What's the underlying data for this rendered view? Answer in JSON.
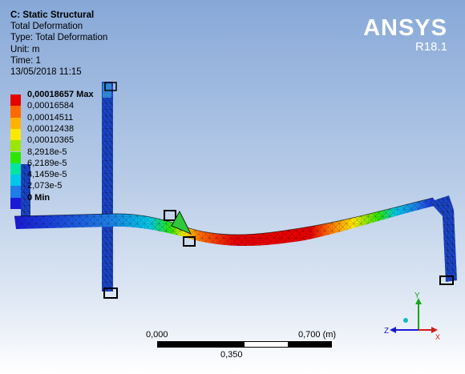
{
  "info": {
    "title": "C: Static Structural",
    "line1": "Total Deformation",
    "line2": "Type: Total Deformation",
    "line3": "Unit: m",
    "line4": "Time: 1",
    "line5": "13/05/2018 11:15"
  },
  "brand": {
    "name": "ANSYS",
    "version": "R18.1"
  },
  "legend": {
    "entries": [
      {
        "label": "0,00018657 Max",
        "color": "#e60000"
      },
      {
        "label": "0,00016584",
        "color": "#ff6a00"
      },
      {
        "label": "0,00014511",
        "color": "#ffb300"
      },
      {
        "label": "0,00012438",
        "color": "#ffe800"
      },
      {
        "label": "0,00010365",
        "color": "#9be600"
      },
      {
        "label": "8,2918e-5",
        "color": "#2ee600"
      },
      {
        "label": "6,2189e-5",
        "color": "#00e6a0"
      },
      {
        "label": "4,1459e-5",
        "color": "#00c8e6"
      },
      {
        "label": "2,073e-5",
        "color": "#1e7de6"
      },
      {
        "label": "0 Min",
        "color": "#1a1ad6"
      }
    ]
  },
  "scale": {
    "left": "0,000",
    "right": "0,700 (m)",
    "mid": "0,350"
  },
  "triad": {
    "y": "Y",
    "z": "Z",
    "x": "X"
  }
}
